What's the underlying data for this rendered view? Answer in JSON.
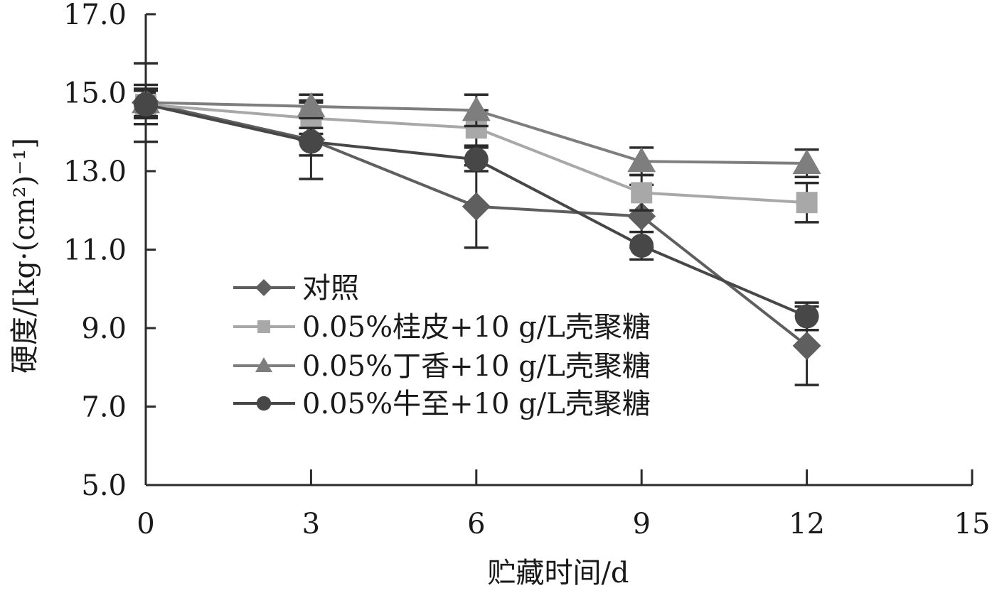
{
  "chart_data": {
    "type": "line",
    "xlabel": "贮藏时间/d",
    "ylabel": "硬度/[kg·(cm²)⁻¹]",
    "xlim": [
      0,
      15
    ],
    "ylim": [
      5.0,
      17.0
    ],
    "x_ticks": [
      "0",
      "3",
      "6",
      "9",
      "12",
      "15"
    ],
    "y_ticks": [
      "5.0",
      "7.0",
      "9.0",
      "11.0",
      "13.0",
      "15.0",
      "17.0"
    ],
    "x": [
      0,
      3,
      6,
      9,
      12
    ],
    "grid": false,
    "legend_position": "left-middle",
    "series": [
      {
        "name": "对照",
        "marker": "diamond",
        "color": "#5f5f5f",
        "values": [
          14.75,
          13.8,
          12.1,
          11.85,
          8.55
        ],
        "error": [
          1.0,
          1.0,
          1.05,
          0.8,
          1.0
        ]
      },
      {
        "name": "0.05%桂皮+10 g/L壳聚糖",
        "marker": "square",
        "color": "#a8a8a8",
        "values": [
          14.7,
          14.35,
          14.1,
          12.45,
          12.2
        ],
        "error": [
          0.35,
          0.4,
          0.45,
          0.45,
          0.5
        ]
      },
      {
        "name": "0.05%丁香+10 g/L壳聚糖",
        "marker": "triangle",
        "color": "#7e7e7e",
        "values": [
          14.75,
          14.65,
          14.55,
          13.25,
          13.2
        ],
        "error": [
          0.35,
          0.3,
          0.4,
          0.35,
          0.35
        ]
      },
      {
        "name": "0.05%牛至+10 g/L壳聚糖",
        "marker": "circle",
        "color": "#474747",
        "values": [
          14.7,
          13.75,
          13.3,
          11.1,
          9.3
        ],
        "error": [
          0.5,
          0.35,
          0.3,
          0.35,
          0.35
        ]
      }
    ]
  }
}
